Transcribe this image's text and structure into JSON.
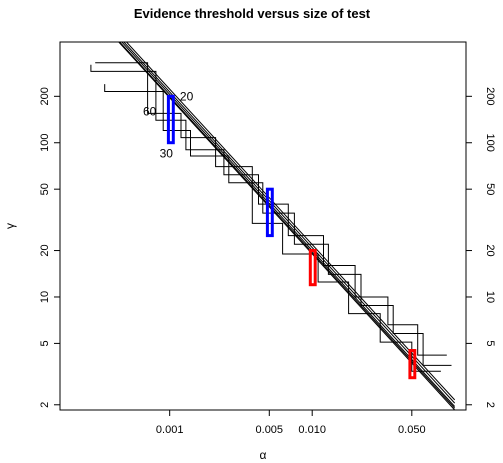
{
  "chart_data": {
    "type": "line",
    "title": "Evidence threshold versus size of test",
    "xlabel": "α",
    "ylabel": "γ",
    "x_scale": "log",
    "y_scale": "log",
    "xlim": [
      0.00017,
      0.12
    ],
    "ylim": [
      1.85,
      450
    ],
    "x_ticks": [
      {
        "value": 0.001,
        "label": "0.001"
      },
      {
        "value": 0.005,
        "label": "0.005"
      },
      {
        "value": 0.01,
        "label": "0.010"
      },
      {
        "value": 0.05,
        "label": "0.050"
      }
    ],
    "y_ticks": [
      {
        "value": 2,
        "label": "2"
      },
      {
        "value": 5,
        "label": "5"
      },
      {
        "value": 10,
        "label": "10"
      },
      {
        "value": 20,
        "label": "20"
      },
      {
        "value": 50,
        "label": "50"
      },
      {
        "value": 100,
        "label": "100"
      },
      {
        "value": 200,
        "label": "200"
      }
    ],
    "grid": false,
    "right_axis": true,
    "series": [
      {
        "x": [
          0.00025,
          0.1
        ],
        "y": [
          900,
          2.15
        ]
      },
      {
        "x": [
          0.00027,
          0.1
        ],
        "y": [
          800,
          2.05
        ]
      },
      {
        "x": [
          0.00029,
          0.1
        ],
        "y": [
          720,
          1.95
        ]
      },
      {
        "x": [
          0.00031,
          0.1
        ],
        "y": [
          650,
          1.9
        ]
      },
      {
        "x": [
          0.00033,
          0.1
        ],
        "y": [
          600,
          1.85
        ]
      }
    ],
    "step_series": [
      {
        "x": [
          0.00028,
          0.00028,
          0.0008,
          0.0008,
          0.0013,
          0.0013,
          0.0024,
          0.0024,
          0.0042,
          0.0042,
          0.0068,
          0.0068,
          0.012,
          0.012,
          0.02,
          0.02,
          0.034,
          0.034,
          0.055,
          0.055,
          0.088
        ],
        "y": [
          320,
          290,
          290,
          140,
          140,
          90,
          90,
          62,
          62,
          40,
          40,
          25,
          25,
          16,
          16,
          10,
          10,
          6.6,
          6.6,
          4.2,
          4.2
        ]
      },
      {
        "x": [
          0.00035,
          0.00035,
          0.0009,
          0.0009,
          0.0014,
          0.0014,
          0.0026,
          0.0026,
          0.0045,
          0.0045,
          0.0075,
          0.0075,
          0.013,
          0.013,
          0.022,
          0.022,
          0.037,
          0.037,
          0.06,
          0.06,
          0.095
        ],
        "y": [
          240,
          215,
          215,
          120,
          120,
          82,
          82,
          55,
          55,
          35,
          35,
          22,
          22,
          14,
          14,
          8.8,
          8.8,
          5.8,
          5.8,
          3.6,
          3.6
        ]
      },
      {
        "x": [
          0.0003,
          0.0003,
          0.0007,
          0.0007,
          0.0012,
          0.0012,
          0.0021,
          0.0021,
          0.0038,
          0.0038,
          0.0062,
          0.0062,
          0.011,
          0.011,
          0.018,
          0.018,
          0.03,
          0.03,
          0.05,
          0.05,
          0.08
        ],
        "y": [
          330,
          330,
          330,
          155,
          155,
          108,
          108,
          70,
          70,
          30,
          30,
          19,
          19,
          12.5,
          12.5,
          7.8,
          7.8,
          5.1,
          5.1,
          3.3,
          3.3
        ]
      }
    ],
    "highlight_boxes": [
      {
        "color": "#0000ff",
        "x": [
          0.00098,
          0.00106
        ],
        "y": [
          100,
          200
        ]
      },
      {
        "color": "#0000ff",
        "x": [
          0.00485,
          0.00525
        ],
        "y": [
          25,
          50
        ]
      },
      {
        "color": "#ff0000",
        "x": [
          0.0097,
          0.0105
        ],
        "y": [
          12,
          20
        ]
      },
      {
        "color": "#ff0000",
        "x": [
          0.0485,
          0.0525
        ],
        "y": [
          3,
          4.5
        ]
      }
    ],
    "annotations": [
      {
        "text": "20",
        "x": 0.00118,
        "y": 200
      },
      {
        "text": "60",
        "x": 0.00065,
        "y": 160
      },
      {
        "text": "30",
        "x": 0.00085,
        "y": 85
      }
    ]
  }
}
